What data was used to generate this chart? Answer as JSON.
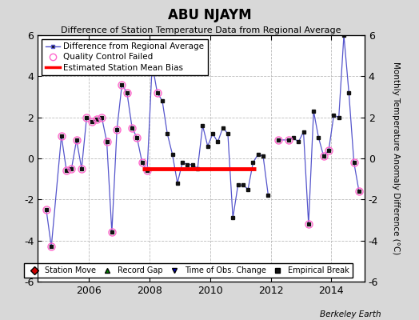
{
  "title": "ABU NJAYM",
  "subtitle": "Difference of Station Temperature Data from Regional Average",
  "ylabel_right": "Monthly Temperature Anomaly Difference (°C)",
  "credit": "Berkeley Earth",
  "ylim": [
    -6,
    6
  ],
  "yticks": [
    -6,
    -4,
    -2,
    0,
    2,
    4,
    6
  ],
  "xlim_start": 2004.3,
  "xlim_end": 2015.1,
  "xticks": [
    2006,
    2008,
    2010,
    2012,
    2014
  ],
  "bias_line_xstart": 2007.75,
  "bias_line_xend": 2011.5,
  "bias_line_y": -0.5,
  "background_color": "#d8d8d8",
  "plot_bg_color": "#ffffff",
  "line_color": "#5555cc",
  "qc_marker_color": "#ff66cc",
  "dot_color": "#111111",
  "bias_color": "#ff0000",
  "time_series": [
    [
      2004.583,
      -2.5
    ],
    [
      2004.75,
      -4.3
    ],
    [
      2005.083,
      1.1
    ],
    [
      2005.25,
      -0.6
    ],
    [
      2005.417,
      -0.5
    ],
    [
      2005.583,
      0.9
    ],
    [
      2005.75,
      -0.5
    ],
    [
      2005.917,
      2.0
    ],
    [
      2006.083,
      1.8
    ],
    [
      2006.25,
      1.9
    ],
    [
      2006.417,
      2.0
    ],
    [
      2006.583,
      0.8
    ],
    [
      2006.75,
      -3.6
    ],
    [
      2006.917,
      1.4
    ],
    [
      2007.083,
      3.6
    ],
    [
      2007.25,
      3.2
    ],
    [
      2007.417,
      1.5
    ],
    [
      2007.583,
      1.0
    ],
    [
      2007.75,
      -0.2
    ],
    [
      2007.917,
      -0.6
    ],
    [
      2008.083,
      4.6
    ],
    [
      2008.25,
      3.2
    ],
    [
      2008.417,
      2.8
    ],
    [
      2008.583,
      1.2
    ],
    [
      2008.75,
      0.2
    ],
    [
      2008.917,
      -1.2
    ],
    [
      2009.083,
      -0.2
    ],
    [
      2009.25,
      -0.3
    ],
    [
      2009.417,
      -0.3
    ],
    [
      2009.583,
      -0.5
    ],
    [
      2009.75,
      1.6
    ],
    [
      2009.917,
      0.6
    ],
    [
      2010.083,
      1.2
    ],
    [
      2010.25,
      0.8
    ],
    [
      2010.417,
      1.5
    ],
    [
      2010.583,
      1.2
    ],
    [
      2010.75,
      -2.9
    ],
    [
      2010.917,
      -1.3
    ],
    [
      2011.083,
      -1.3
    ],
    [
      2011.25,
      -1.5
    ],
    [
      2011.417,
      -0.2
    ],
    [
      2011.583,
      0.2
    ],
    [
      2011.75,
      0.1
    ],
    [
      2011.917,
      -1.8
    ],
    [
      2012.25,
      0.9
    ],
    [
      2012.583,
      0.9
    ],
    [
      2012.75,
      1.0
    ],
    [
      2012.917,
      0.8
    ],
    [
      2013.083,
      1.3
    ],
    [
      2013.25,
      -3.2
    ],
    [
      2013.417,
      2.3
    ],
    [
      2013.583,
      1.0
    ],
    [
      2013.75,
      0.1
    ],
    [
      2013.917,
      0.4
    ],
    [
      2014.083,
      2.1
    ],
    [
      2014.25,
      2.0
    ],
    [
      2014.417,
      6.0
    ],
    [
      2014.583,
      3.2
    ],
    [
      2014.75,
      -0.2
    ],
    [
      2014.917,
      -1.6
    ]
  ],
  "qc_failed_points": [
    [
      2004.583,
      -2.5
    ],
    [
      2004.75,
      -4.3
    ],
    [
      2005.083,
      1.1
    ],
    [
      2005.25,
      -0.6
    ],
    [
      2005.417,
      -0.5
    ],
    [
      2005.583,
      0.9
    ],
    [
      2005.75,
      -0.5
    ],
    [
      2005.917,
      2.0
    ],
    [
      2006.083,
      1.8
    ],
    [
      2006.25,
      1.9
    ],
    [
      2006.417,
      2.0
    ],
    [
      2006.583,
      0.8
    ],
    [
      2006.75,
      -3.6
    ],
    [
      2006.917,
      1.4
    ],
    [
      2007.083,
      3.6
    ],
    [
      2007.25,
      3.2
    ],
    [
      2007.417,
      1.5
    ],
    [
      2007.583,
      1.0
    ],
    [
      2007.75,
      -0.2
    ],
    [
      2007.917,
      -0.6
    ],
    [
      2008.083,
      4.6
    ],
    [
      2008.25,
      3.2
    ],
    [
      2012.25,
      0.9
    ],
    [
      2012.583,
      0.9
    ],
    [
      2013.25,
      -3.2
    ],
    [
      2013.75,
      0.1
    ],
    [
      2013.917,
      0.4
    ],
    [
      2014.75,
      -0.2
    ],
    [
      2014.917,
      -1.6
    ]
  ],
  "gap_segments": [
    [
      [
        2004.583,
        2011.917
      ]
    ],
    [
      [
        2012.25,
        2014.917
      ]
    ]
  ]
}
